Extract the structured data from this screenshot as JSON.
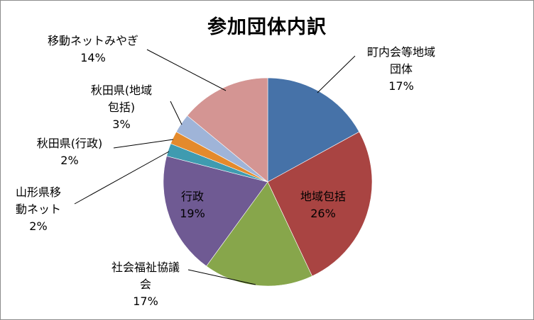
{
  "chart_data": {
    "type": "pie",
    "title": "参加団体内訳",
    "slices": [
      {
        "label_lines": [
          "町内会等地域",
          "団体"
        ],
        "value_text": "17%",
        "value": 17,
        "color": "#4672a8"
      },
      {
        "label_lines": [
          "地域包括"
        ],
        "value_text": "26%",
        "value": 26,
        "color": "#a94442"
      },
      {
        "label_lines": [
          "社会福祉協議",
          "会"
        ],
        "value_text": "17%",
        "value": 17,
        "color": "#87a64b"
      },
      {
        "label_lines": [
          "行政"
        ],
        "value_text": "19%",
        "value": 19,
        "color": "#6f5a93"
      },
      {
        "label_lines": [
          "山形県移",
          "動ネット"
        ],
        "value_text": "2%",
        "value": 2,
        "color": "#3f9bb0"
      },
      {
        "label_lines": [
          "秋田県(行政)"
        ],
        "value_text": "2%",
        "value": 2,
        "color": "#e48a2c"
      },
      {
        "label_lines": [
          "秋田県(地域",
          "包括)"
        ],
        "value_text": "3%",
        "value": 3,
        "color": "#9fb4d8"
      },
      {
        "label_lines": [
          "移動ネットみやぎ"
        ],
        "value_text": "14%",
        "value": 14,
        "color": "#d49593"
      }
    ]
  }
}
